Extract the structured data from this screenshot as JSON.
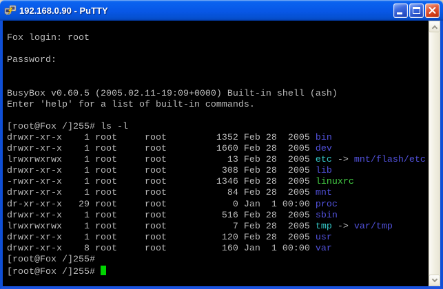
{
  "window": {
    "title": "192.168.0.90 - PuTTY",
    "controls": [
      "minimize",
      "maximize",
      "close"
    ]
  },
  "terminal": {
    "colors": {
      "fg": "#bcbcbc",
      "dir": "#5252dd",
      "link": "#35c7c7",
      "exec": "#43cb43",
      "cursor": "#00d400",
      "bg": "#000000"
    },
    "lines": [
      {
        "segments": []
      },
      {
        "segments": [
          {
            "text": "Fox login: root",
            "color": "fg"
          }
        ]
      },
      {
        "segments": []
      },
      {
        "segments": [
          {
            "text": "Password:",
            "color": "fg"
          }
        ]
      },
      {
        "segments": []
      },
      {
        "segments": []
      },
      {
        "segments": [
          {
            "text": "BusyBox v0.60.5 (2005.02.11-19:09+0000) Built-in shell (ash)",
            "color": "fg"
          }
        ]
      },
      {
        "segments": [
          {
            "text": "Enter 'help' for a list of built-in commands.",
            "color": "fg"
          }
        ]
      },
      {
        "segments": []
      },
      {
        "segments": [
          {
            "text": "[root@Fox /]255# ls -l",
            "color": "fg"
          }
        ]
      },
      {
        "segments": [
          {
            "text": "drwxr-xr-x    1 root     root         1352 Feb 28  2005 ",
            "color": "fg"
          },
          {
            "text": "bin",
            "color": "dir"
          }
        ]
      },
      {
        "segments": [
          {
            "text": "drwxr-xr-x    1 root     root         1660 Feb 28  2005 ",
            "color": "fg"
          },
          {
            "text": "dev",
            "color": "dir"
          }
        ]
      },
      {
        "segments": [
          {
            "text": "lrwxrwxrwx    1 root     root           13 Feb 28  2005 ",
            "color": "fg"
          },
          {
            "text": "etc",
            "color": "link"
          },
          {
            "text": " -> ",
            "color": "fg"
          },
          {
            "text": "mnt/flash/etc",
            "color": "dir"
          }
        ]
      },
      {
        "segments": [
          {
            "text": "drwxr-xr-x    1 root     root          308 Feb 28  2005 ",
            "color": "fg"
          },
          {
            "text": "lib",
            "color": "dir"
          }
        ]
      },
      {
        "segments": [
          {
            "text": "-rwxr-xr-x    1 root     root         1346 Feb 28  2005 ",
            "color": "fg"
          },
          {
            "text": "linuxrc",
            "color": "exec"
          }
        ]
      },
      {
        "segments": [
          {
            "text": "drwxr-xr-x    1 root     root           84 Feb 28  2005 ",
            "color": "fg"
          },
          {
            "text": "mnt",
            "color": "dir"
          }
        ]
      },
      {
        "segments": [
          {
            "text": "dr-xr-xr-x   29 root     root            0 Jan  1 00:00 ",
            "color": "fg"
          },
          {
            "text": "proc",
            "color": "dir"
          }
        ]
      },
      {
        "segments": [
          {
            "text": "drwxr-xr-x    1 root     root          516 Feb 28  2005 ",
            "color": "fg"
          },
          {
            "text": "sbin",
            "color": "dir"
          }
        ]
      },
      {
        "segments": [
          {
            "text": "lrwxrwxrwx    1 root     root            7 Feb 28  2005 ",
            "color": "fg"
          },
          {
            "text": "tmp",
            "color": "link"
          },
          {
            "text": " -> ",
            "color": "fg"
          },
          {
            "text": "var/tmp",
            "color": "dir"
          }
        ]
      },
      {
        "segments": [
          {
            "text": "drwxr-xr-x    1 root     root          120 Feb 28  2005 ",
            "color": "fg"
          },
          {
            "text": "usr",
            "color": "dir"
          }
        ]
      },
      {
        "segments": [
          {
            "text": "drwxr-xr-x    8 root     root          160 Jan  1 00:00 ",
            "color": "fg"
          },
          {
            "text": "var",
            "color": "dir"
          }
        ]
      },
      {
        "segments": [
          {
            "text": "[root@Fox /]255#",
            "color": "fg"
          }
        ]
      },
      {
        "segments": [
          {
            "text": "[root@Fox /]255# ",
            "color": "fg"
          }
        ],
        "cursor": true
      }
    ]
  }
}
